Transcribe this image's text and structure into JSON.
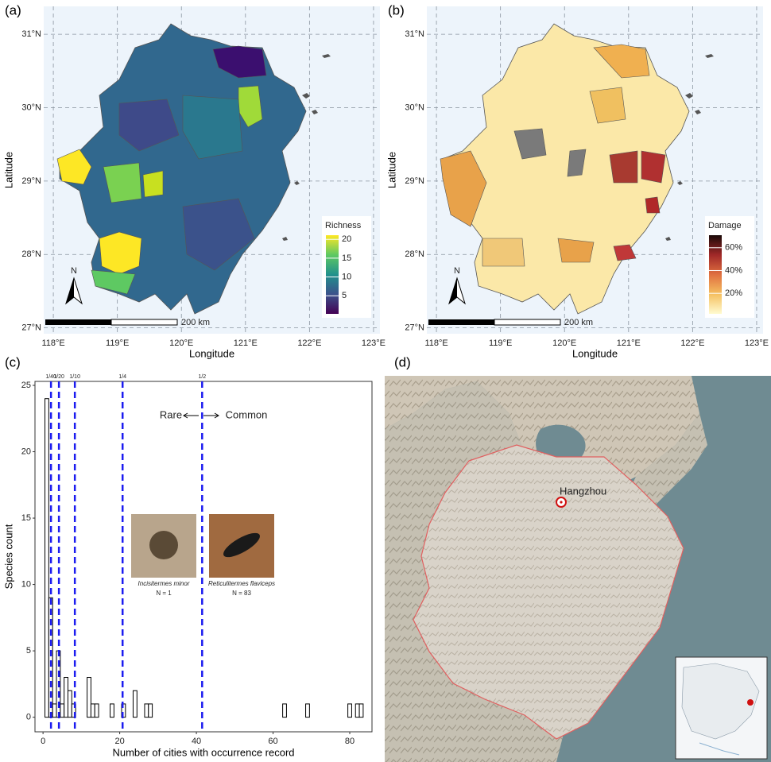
{
  "maps": [
    {
      "label": "(a)",
      "xlabel": "Longitude",
      "ylabel": "Latitude",
      "xlim": [
        117.85,
        123.1
      ],
      "ylim": [
        26.92,
        31.38
      ],
      "xticks": [
        {
          "value": 118,
          "label": "118°E"
        },
        {
          "value": 119,
          "label": "119°E"
        },
        {
          "value": 120,
          "label": "120°E"
        },
        {
          "value": 121,
          "label": "121°E"
        },
        {
          "value": 122,
          "label": "122°E"
        },
        {
          "value": 123,
          "label": "123°E"
        }
      ],
      "yticks": [
        {
          "value": 27,
          "label": "27°N"
        },
        {
          "value": 28,
          "label": "28°N"
        },
        {
          "value": 29,
          "label": "29°N"
        },
        {
          "value": 30,
          "label": "30°N"
        },
        {
          "value": 31,
          "label": "31°N"
        }
      ],
      "legend": {
        "title": "Richness",
        "lim": [
          0.2,
          21.1
        ],
        "ticks": [
          5,
          10,
          15,
          20
        ],
        "colors": [
          "#440154",
          "#3b528b",
          "#21918c",
          "#5ec962",
          "#fde725"
        ]
      },
      "north": "N",
      "scale": "200 km"
    },
    {
      "label": "(b)",
      "xlabel": "Longitude",
      "ylabel": "Latitude",
      "xlim": [
        117.85,
        123.1
      ],
      "ylim": [
        26.92,
        31.38
      ],
      "xticks": [
        {
          "value": 118,
          "label": "118°E"
        },
        {
          "value": 119,
          "label": "119°E"
        },
        {
          "value": 120,
          "label": "120°E"
        },
        {
          "value": 121,
          "label": "121°E"
        },
        {
          "value": 122,
          "label": "122°E"
        },
        {
          "value": 123,
          "label": "123°E"
        }
      ],
      "yticks": [
        {
          "value": 27,
          "label": "27°N"
        },
        {
          "value": 28,
          "label": "28°N"
        },
        {
          "value": 29,
          "label": "29°N"
        },
        {
          "value": 30,
          "label": "30°N"
        },
        {
          "value": 31,
          "label": "31°N"
        }
      ],
      "legend": {
        "title": "Damage",
        "lim": [
          2,
          71
        ],
        "ticks": [
          {
            "value": 20,
            "label": "20%"
          },
          {
            "value": 40,
            "label": "40%"
          },
          {
            "value": 60,
            "label": "60%"
          }
        ],
        "colors": [
          "#fffbd0",
          "#f5c060",
          "#e07040",
          "#a02828",
          "#1a0a08"
        ]
      },
      "north": "N",
      "scale": "200 km"
    }
  ],
  "chart_data": {
    "type": "histogram",
    "label": "(c)",
    "xlabel": "Number of cities with occurrence record",
    "ylabel": "Species count",
    "bins": [
      0.5,
      1.5,
      2.5,
      3.5,
      4.5,
      5.5,
      6.5,
      7.5,
      8.5,
      9.5,
      10.5,
      11.5,
      12.5,
      13.5,
      14.5,
      15.5,
      16.5,
      17.5,
      18.5,
      19.5,
      20.5,
      21.5,
      22.5,
      23.5,
      24.5,
      25.5,
      26.5,
      27.5,
      28.5,
      29.5,
      30.5,
      31.5,
      32.5,
      33.5,
      34.5,
      35.5,
      36.5,
      37.5,
      38.5,
      39.5,
      40.5,
      41.5,
      42.5,
      43.5,
      44.5,
      45.5,
      46.5,
      47.5,
      48.5,
      49.5,
      50.5,
      51.5,
      52.5,
      53.5,
      54.5,
      55.5,
      56.5,
      57.5,
      58.5,
      59.5,
      60.5,
      61.5,
      62.5,
      63.5,
      64.5,
      65.5,
      66.5,
      67.5,
      68.5,
      69.5,
      70.5,
      71.5,
      72.5,
      73.5,
      74.5,
      75.5,
      76.5,
      77.5,
      78.5,
      79.5,
      80.5,
      81.5,
      82.5,
      83.5
    ],
    "values": [
      24,
      9,
      1,
      5,
      1,
      3,
      2,
      1,
      0,
      0,
      0,
      3,
      1,
      1,
      0,
      0,
      0,
      1,
      0,
      0,
      1,
      0,
      0,
      2,
      0,
      0,
      1,
      1,
      0,
      0,
      0,
      0,
      0,
      0,
      0,
      0,
      0,
      0,
      0,
      0,
      0,
      0,
      0,
      0,
      0,
      0,
      0,
      0,
      0,
      0,
      0,
      0,
      0,
      0,
      0,
      0,
      0,
      0,
      0,
      0,
      0,
      0,
      1,
      0,
      0,
      0,
      0,
      0,
      1,
      0,
      0,
      0,
      0,
      0,
      0,
      0,
      0,
      0,
      0,
      1,
      0,
      1,
      1
    ],
    "color": "#ffffff",
    "edge_color": "#000000",
    "xlim": [
      -2.1,
      85.8
    ],
    "ylim": [
      -1.1,
      25.3
    ],
    "xticks": [
      0,
      20,
      40,
      60,
      80
    ],
    "yticks": [
      0,
      5,
      10,
      15,
      20,
      25
    ],
    "vlines": [
      {
        "value": 2.075,
        "label": "1/40"
      },
      {
        "value": 4.15,
        "label": "1/20"
      },
      {
        "value": 8.3,
        "label": "1/10"
      },
      {
        "value": 20.75,
        "label": "1/4"
      },
      {
        "value": 41.5,
        "label": "1/2"
      }
    ],
    "vline_color": "#1c1cf0",
    "rare": "Rare",
    "common": "Common",
    "photos": [
      {
        "species": "Incisitermes minor",
        "n": "N = 1"
      },
      {
        "species": "Reticulitermes flaviceps",
        "n": "N = 83"
      }
    ]
  },
  "map_d": {
    "label": "(d)",
    "city": "Hangzhou"
  }
}
